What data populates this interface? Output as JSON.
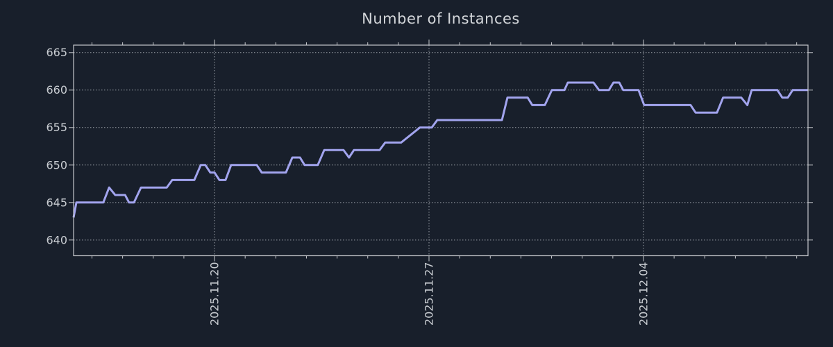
{
  "figure": {
    "background_color": "#181f2b"
  },
  "chart_data": {
    "type": "line",
    "title": "Number of Instances",
    "xlabel": "",
    "ylabel": "",
    "legend": null,
    "grid": "dotted major gridlines, both axes",
    "x_unit": "days (0 = left edge of plot, approx 2025.11.15; 1 day per minor tick)",
    "xlim": [
      0,
      23.97
    ],
    "ylim": [
      637.9,
      666.0
    ],
    "y_ticks": [
      640,
      645,
      650,
      655,
      660,
      665
    ],
    "x_major_ticks": [
      {
        "pos": 4.6,
        "label": "2025.11.20"
      },
      {
        "pos": 11.6,
        "label": "2025.11.27"
      },
      {
        "pos": 18.6,
        "label": "2025.12.04"
      }
    ],
    "x_minor_tick_start": 0.6,
    "x_minor_tick_step": 1.0,
    "x_minor_tick_count": 24,
    "series": [
      {
        "name": "instances",
        "points": [
          [
            0.0,
            643
          ],
          [
            0.09,
            645
          ],
          [
            0.97,
            645
          ],
          [
            1.16,
            647
          ],
          [
            1.36,
            646
          ],
          [
            1.68,
            646
          ],
          [
            1.81,
            645
          ],
          [
            1.97,
            645
          ],
          [
            2.2,
            647
          ],
          [
            3.04,
            647
          ],
          [
            3.22,
            648
          ],
          [
            3.94,
            648
          ],
          [
            4.15,
            650
          ],
          [
            4.3,
            650
          ],
          [
            4.46,
            649
          ],
          [
            4.6,
            649
          ],
          [
            4.76,
            648
          ],
          [
            4.96,
            648
          ],
          [
            5.14,
            650
          ],
          [
            5.98,
            650
          ],
          [
            6.14,
            649
          ],
          [
            6.93,
            649
          ],
          [
            7.14,
            651
          ],
          [
            7.39,
            651
          ],
          [
            7.54,
            650
          ],
          [
            7.97,
            650
          ],
          [
            8.18,
            652
          ],
          [
            8.81,
            652
          ],
          [
            8.99,
            651
          ],
          [
            9.15,
            652
          ],
          [
            9.99,
            652
          ],
          [
            10.17,
            653
          ],
          [
            10.69,
            653
          ],
          [
            11.3,
            655
          ],
          [
            11.69,
            655
          ],
          [
            11.87,
            656
          ],
          [
            13.98,
            656
          ],
          [
            14.16,
            659
          ],
          [
            14.82,
            659
          ],
          [
            14.97,
            658
          ],
          [
            15.38,
            658
          ],
          [
            15.61,
            660
          ],
          [
            16.02,
            660
          ],
          [
            16.13,
            661
          ],
          [
            16.97,
            661
          ],
          [
            17.15,
            660
          ],
          [
            17.47,
            660
          ],
          [
            17.62,
            661
          ],
          [
            17.81,
            661
          ],
          [
            17.94,
            660
          ],
          [
            18.44,
            660
          ],
          [
            18.62,
            658
          ],
          [
            20.14,
            658
          ],
          [
            20.3,
            657
          ],
          [
            21.0,
            657
          ],
          [
            21.2,
            659
          ],
          [
            21.79,
            659
          ],
          [
            21.99,
            658
          ],
          [
            22.13,
            660
          ],
          [
            22.97,
            660
          ],
          [
            23.13,
            659
          ],
          [
            23.31,
            659
          ],
          [
            23.47,
            660
          ],
          [
            23.97,
            660
          ]
        ]
      }
    ],
    "colors": {
      "line": "#a2a4ee",
      "frame": "#c6c8cc",
      "grid": "#9aa0a8",
      "tick_label": "#c9cdd2",
      "title": "#d3d6da",
      "background": "#181f2b"
    }
  }
}
